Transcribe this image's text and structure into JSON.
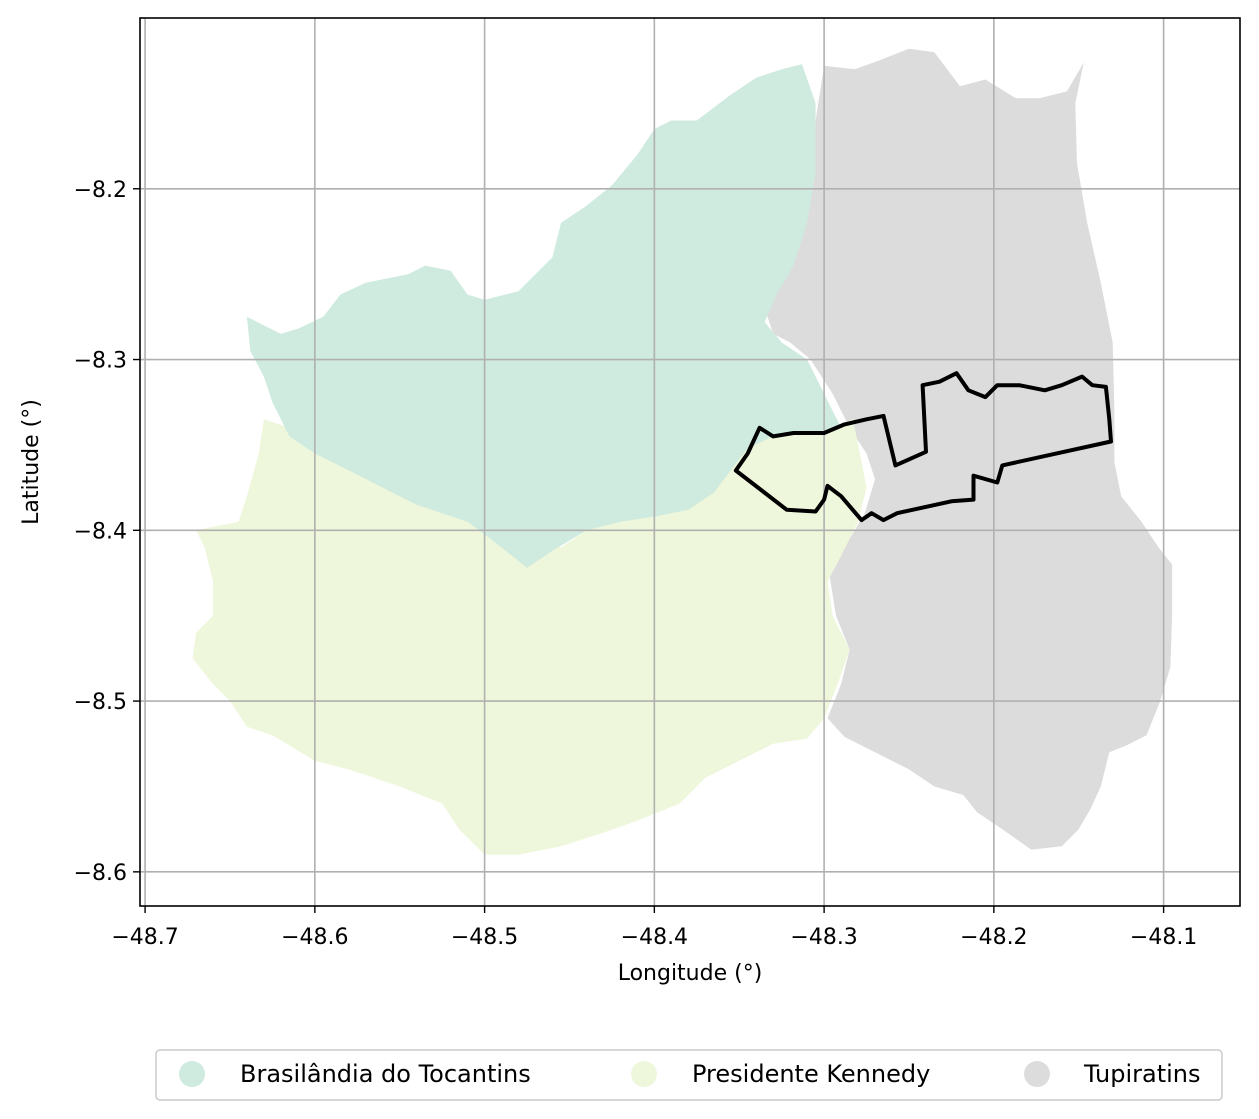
{
  "axes": {
    "xlabel": "Longitude (°)",
    "ylabel": "Latitude (°)",
    "x_ticks": [
      -48.7,
      -48.6,
      -48.5,
      -48.4,
      -48.3,
      -48.2,
      -48.1
    ],
    "x_tick_labels": [
      "−48.7",
      "−48.6",
      "−48.5",
      "−48.4",
      "−48.3",
      "−48.2",
      "−48.1"
    ],
    "y_ticks": [
      -8.2,
      -8.3,
      -8.4,
      -8.5,
      -8.6
    ],
    "y_tick_labels": [
      "−8.2",
      "−8.3",
      "−8.4",
      "−8.5",
      "−8.6"
    ],
    "xlim": [
      -48.703,
      -48.055
    ],
    "ylim": [
      -8.62,
      -8.1
    ],
    "grid": true
  },
  "legend": {
    "placement": "bottom-center",
    "entries": [
      {
        "label": "Brasilândia do Tocantins",
        "color": "#cfeadf"
      },
      {
        "label": "Presidente Kennedy",
        "color": "#eef7db"
      },
      {
        "label": "Tupiratins",
        "color": "#dcdcdc"
      }
    ]
  },
  "map": {
    "outline_color": "#000000",
    "regions": [
      {
        "name": "Tupiratins",
        "color": "#dcdcdc",
        "coords": [
          [
            -48.3,
            -8.128
          ],
          [
            -48.282,
            -8.13
          ],
          [
            -48.268,
            -8.125
          ],
          [
            -48.25,
            -8.118
          ],
          [
            -48.235,
            -8.12
          ],
          [
            -48.22,
            -8.14
          ],
          [
            -48.205,
            -8.136
          ],
          [
            -48.187,
            -8.147
          ],
          [
            -48.173,
            -8.147
          ],
          [
            -48.157,
            -8.143
          ],
          [
            -48.147,
            -8.126
          ],
          [
            -48.152,
            -8.15
          ],
          [
            -48.151,
            -8.185
          ],
          [
            -48.145,
            -8.22
          ],
          [
            -48.137,
            -8.255
          ],
          [
            -48.13,
            -8.29
          ],
          [
            -48.129,
            -8.33
          ],
          [
            -48.129,
            -8.36
          ],
          [
            -48.125,
            -8.38
          ],
          [
            -48.113,
            -8.395
          ],
          [
            -48.103,
            -8.41
          ],
          [
            -48.095,
            -8.42
          ],
          [
            -48.095,
            -8.45
          ],
          [
            -48.096,
            -8.48
          ],
          [
            -48.102,
            -8.5
          ],
          [
            -48.11,
            -8.52
          ],
          [
            -48.122,
            -8.526
          ],
          [
            -48.132,
            -8.53
          ],
          [
            -48.137,
            -8.55
          ],
          [
            -48.143,
            -8.563
          ],
          [
            -48.15,
            -8.575
          ],
          [
            -48.16,
            -8.585
          ],
          [
            -48.178,
            -8.587
          ],
          [
            -48.195,
            -8.575
          ],
          [
            -48.21,
            -8.565
          ],
          [
            -48.218,
            -8.555
          ],
          [
            -48.235,
            -8.55
          ],
          [
            -48.25,
            -8.54
          ],
          [
            -48.27,
            -8.53
          ],
          [
            -48.288,
            -8.521
          ],
          [
            -48.298,
            -8.51
          ],
          [
            -48.29,
            -8.49
          ],
          [
            -48.285,
            -8.47
          ],
          [
            -48.293,
            -8.45
          ],
          [
            -48.297,
            -8.425
          ],
          [
            -48.288,
            -8.41
          ],
          [
            -48.276,
            -8.39
          ],
          [
            -48.27,
            -8.37
          ],
          [
            -48.275,
            -8.355
          ],
          [
            -48.285,
            -8.34
          ],
          [
            -48.295,
            -8.32
          ],
          [
            -48.308,
            -8.3
          ],
          [
            -48.32,
            -8.29
          ],
          [
            -48.33,
            -8.285
          ],
          [
            -48.335,
            -8.27
          ],
          [
            -48.327,
            -8.26
          ],
          [
            -48.32,
            -8.245
          ],
          [
            -48.312,
            -8.22
          ],
          [
            -48.307,
            -8.19
          ],
          [
            -48.305,
            -8.16
          ],
          [
            -48.3,
            -8.128
          ]
        ]
      },
      {
        "name": "Presidente Kennedy",
        "color": "#eef7db",
        "coords": [
          [
            -48.63,
            -8.335
          ],
          [
            -48.615,
            -8.34
          ],
          [
            -48.59,
            -8.355
          ],
          [
            -48.57,
            -8.362
          ],
          [
            -48.55,
            -8.362
          ],
          [
            -48.53,
            -8.372
          ],
          [
            -48.51,
            -8.378
          ],
          [
            -48.495,
            -8.385
          ],
          [
            -48.48,
            -8.392
          ],
          [
            -48.47,
            -8.4
          ],
          [
            -48.455,
            -8.41
          ],
          [
            -48.44,
            -8.4
          ],
          [
            -48.425,
            -8.392
          ],
          [
            -48.405,
            -8.388
          ],
          [
            -48.385,
            -8.38
          ],
          [
            -48.37,
            -8.372
          ],
          [
            -48.355,
            -8.365
          ],
          [
            -48.345,
            -8.35
          ],
          [
            -48.33,
            -8.345
          ],
          [
            -48.31,
            -8.343
          ],
          [
            -48.295,
            -8.34
          ],
          [
            -48.283,
            -8.335
          ],
          [
            -48.278,
            -8.36
          ],
          [
            -48.275,
            -8.375
          ],
          [
            -48.28,
            -8.395
          ],
          [
            -48.29,
            -8.415
          ],
          [
            -48.298,
            -8.43
          ],
          [
            -48.295,
            -8.45
          ],
          [
            -48.285,
            -8.47
          ],
          [
            -48.292,
            -8.49
          ],
          [
            -48.3,
            -8.51
          ],
          [
            -48.31,
            -8.522
          ],
          [
            -48.33,
            -8.525
          ],
          [
            -48.35,
            -8.535
          ],
          [
            -48.37,
            -8.545
          ],
          [
            -48.385,
            -8.56
          ],
          [
            -48.41,
            -8.57
          ],
          [
            -48.43,
            -8.577
          ],
          [
            -48.455,
            -8.585
          ],
          [
            -48.48,
            -8.59
          ],
          [
            -48.5,
            -8.59
          ],
          [
            -48.515,
            -8.575
          ],
          [
            -48.525,
            -8.56
          ],
          [
            -48.55,
            -8.55
          ],
          [
            -48.58,
            -8.54
          ],
          [
            -48.6,
            -8.535
          ],
          [
            -48.625,
            -8.52
          ],
          [
            -48.64,
            -8.515
          ],
          [
            -48.65,
            -8.5
          ],
          [
            -48.66,
            -8.49
          ],
          [
            -48.672,
            -8.475
          ],
          [
            -48.67,
            -8.46
          ],
          [
            -48.66,
            -8.45
          ],
          [
            -48.66,
            -8.43
          ],
          [
            -48.665,
            -8.41
          ],
          [
            -48.67,
            -8.4
          ],
          [
            -48.645,
            -8.395
          ],
          [
            -48.64,
            -8.38
          ],
          [
            -48.633,
            -8.355
          ],
          [
            -48.63,
            -8.335
          ]
        ]
      },
      {
        "name": "Brasilândia do Tocantins",
        "color": "#cfeadf",
        "coords": [
          [
            -48.64,
            -8.275
          ],
          [
            -48.63,
            -8.28
          ],
          [
            -48.62,
            -8.285
          ],
          [
            -48.61,
            -8.282
          ],
          [
            -48.595,
            -8.275
          ],
          [
            -48.585,
            -8.262
          ],
          [
            -48.57,
            -8.255
          ],
          [
            -48.545,
            -8.25
          ],
          [
            -48.535,
            -8.245
          ],
          [
            -48.52,
            -8.248
          ],
          [
            -48.51,
            -8.262
          ],
          [
            -48.5,
            -8.265
          ],
          [
            -48.48,
            -8.26
          ],
          [
            -48.46,
            -8.24
          ],
          [
            -48.455,
            -8.22
          ],
          [
            -48.44,
            -8.21
          ],
          [
            -48.425,
            -8.198
          ],
          [
            -48.41,
            -8.18
          ],
          [
            -48.4,
            -8.165
          ],
          [
            -48.39,
            -8.16
          ],
          [
            -48.375,
            -8.16
          ],
          [
            -48.355,
            -8.145
          ],
          [
            -48.34,
            -8.135
          ],
          [
            -48.325,
            -8.13
          ],
          [
            -48.313,
            -8.127
          ],
          [
            -48.305,
            -8.15
          ],
          [
            -48.305,
            -8.19
          ],
          [
            -48.31,
            -8.22
          ],
          [
            -48.318,
            -8.245
          ],
          [
            -48.328,
            -8.262
          ],
          [
            -48.335,
            -8.278
          ],
          [
            -48.325,
            -8.29
          ],
          [
            -48.31,
            -8.3
          ],
          [
            -48.3,
            -8.32
          ],
          [
            -48.29,
            -8.34
          ],
          [
            -48.31,
            -8.343
          ],
          [
            -48.33,
            -8.345
          ],
          [
            -48.345,
            -8.352
          ],
          [
            -48.355,
            -8.365
          ],
          [
            -48.365,
            -8.378
          ],
          [
            -48.38,
            -8.388
          ],
          [
            -48.4,
            -8.392
          ],
          [
            -48.42,
            -8.395
          ],
          [
            -48.44,
            -8.4
          ],
          [
            -48.46,
            -8.412
          ],
          [
            -48.475,
            -8.422
          ],
          [
            -48.49,
            -8.41
          ],
          [
            -48.51,
            -8.395
          ],
          [
            -48.54,
            -8.385
          ],
          [
            -48.56,
            -8.375
          ],
          [
            -48.58,
            -8.365
          ],
          [
            -48.6,
            -8.355
          ],
          [
            -48.615,
            -8.345
          ],
          [
            -48.625,
            -8.325
          ],
          [
            -48.63,
            -8.31
          ],
          [
            -48.638,
            -8.295
          ],
          [
            -48.64,
            -8.275
          ]
        ]
      }
    ],
    "outline": [
      [
        -48.352,
        -8.365
      ],
      [
        -48.345,
        -8.355
      ],
      [
        -48.338,
        -8.34
      ],
      [
        -48.33,
        -8.345
      ],
      [
        -48.318,
        -8.343
      ],
      [
        -48.3,
        -8.343
      ],
      [
        -48.288,
        -8.338
      ],
      [
        -48.275,
        -8.335
      ],
      [
        -48.265,
        -8.333
      ],
      [
        -48.258,
        -8.362
      ],
      [
        -48.24,
        -8.354
      ],
      [
        -48.242,
        -8.315
      ],
      [
        -48.232,
        -8.313
      ],
      [
        -48.222,
        -8.308
      ],
      [
        -48.215,
        -8.318
      ],
      [
        -48.205,
        -8.322
      ],
      [
        -48.198,
        -8.315
      ],
      [
        -48.185,
        -8.315
      ],
      [
        -48.17,
        -8.318
      ],
      [
        -48.16,
        -8.315
      ],
      [
        -48.148,
        -8.31
      ],
      [
        -48.142,
        -8.315
      ],
      [
        -48.134,
        -8.316
      ],
      [
        -48.132,
        -8.335
      ],
      [
        -48.131,
        -8.348
      ],
      [
        -48.195,
        -8.362
      ],
      [
        -48.198,
        -8.372
      ],
      [
        -48.212,
        -8.368
      ],
      [
        -48.212,
        -8.382
      ],
      [
        -48.225,
        -8.383
      ],
      [
        -48.257,
        -8.39
      ],
      [
        -48.265,
        -8.394
      ],
      [
        -48.272,
        -8.39
      ],
      [
        -48.278,
        -8.394
      ],
      [
        -48.29,
        -8.38
      ],
      [
        -48.298,
        -8.374
      ],
      [
        -48.3,
        -8.382
      ],
      [
        -48.305,
        -8.389
      ],
      [
        -48.322,
        -8.388
      ],
      [
        -48.352,
        -8.365
      ]
    ]
  }
}
